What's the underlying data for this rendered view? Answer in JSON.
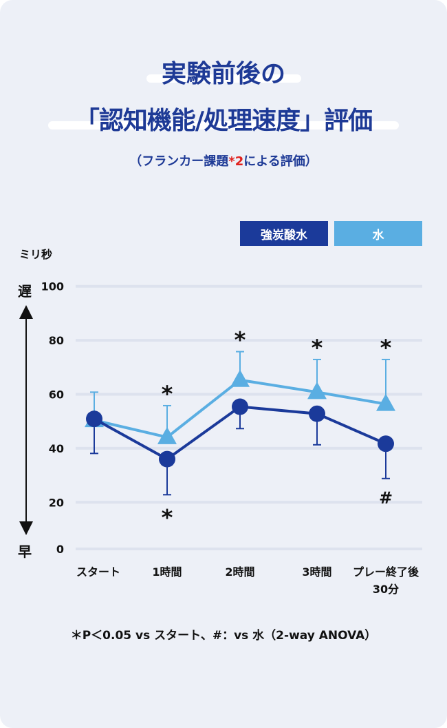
{
  "title_line1": "実験前後の",
  "title_line2": "「認知機能/処理速度」評価",
  "subtitle": {
    "before": "（フランカー課題",
    "marker": "*2",
    "after": "による評価）"
  },
  "colors": {
    "carbonated": "#1b3a9a",
    "water": "#5aaee2",
    "title": "#1e3a96",
    "marker": "#e0201c"
  },
  "chart_data": {
    "type": "line",
    "ylabel": "ミリ秒",
    "y_arrow_top": "遅",
    "y_arrow_bottom": "早",
    "ylim": [
      0,
      100
    ],
    "yticks": [
      "0",
      "20",
      "40",
      "60",
      "80",
      "100"
    ],
    "grid": true,
    "legend_position": "top-right",
    "categories": [
      "スタート",
      "1時間",
      "2時間",
      "3時間",
      "プレー終了後\n30分"
    ],
    "series": [
      {
        "name": "強炭酸水",
        "marker": "circle",
        "values": [
          50.9,
          36.0,
          55.4,
          52.8,
          41.7
        ],
        "error_lower": [
          38.1,
          22.8,
          47.3,
          41.3,
          28.8
        ]
      },
      {
        "name": "水",
        "marker": "triangle",
        "values": [
          50.4,
          44.1,
          65.3,
          60.8,
          56.4
        ],
        "error_upper": [
          60.8,
          55.8,
          75.8,
          72.9,
          72.9
        ]
      }
    ],
    "annotations": {
      "water_above": [
        "",
        "*",
        "*",
        "*",
        "*"
      ],
      "carbonated_below": [
        "",
        "*",
        "",
        "",
        "#"
      ]
    },
    "footnote": "＊P＜0.05 vs スタート、#：vs 水（2-way ANOVA）"
  }
}
